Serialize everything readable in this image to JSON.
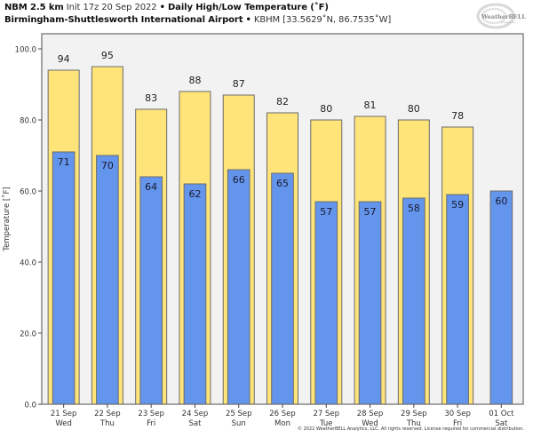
{
  "header": {
    "model": "NBM 2.5 km",
    "init": "Init 17z 20 Sep 2022",
    "separator": "•",
    "product": "Daily High/Low Temperature (˚F)",
    "location": "Birmingham-Shuttlesworth International Airport",
    "station": "KBHM [33.5629˚N, 86.7535˚W]"
  },
  "logo": {
    "name": "WeatherBELL",
    "sub": "Analytics LLC"
  },
  "copyright": "© 2022 WeatherBELL Analytics, LLC. All rights reserved. License required for commercial distribution.",
  "colors": {
    "high": "#ffe47a",
    "low": "#6495ed",
    "bar_edge": "#6b6b6b",
    "plot_bg": "#f2f2f2",
    "frame": "#6b6b6b"
  },
  "chart_data": {
    "type": "bar",
    "title": "Daily High/Low Temperature (˚F)",
    "xlabel": "",
    "ylabel": "Temperature [˚F]",
    "ylim": [
      0,
      104.25
    ],
    "yticks": [
      0,
      20,
      40,
      60,
      80,
      100
    ],
    "ytick_labels": [
      "0.0",
      "20.0",
      "40.0",
      "60.0",
      "80.0",
      "100.0"
    ],
    "grid": false,
    "categories": [
      {
        "date": "21 Sep",
        "day": "Wed"
      },
      {
        "date": "22 Sep",
        "day": "Thu"
      },
      {
        "date": "23 Sep",
        "day": "Fri"
      },
      {
        "date": "24 Sep",
        "day": "Sat"
      },
      {
        "date": "25 Sep",
        "day": "Sun"
      },
      {
        "date": "26 Sep",
        "day": "Mon"
      },
      {
        "date": "27 Sep",
        "day": "Tue"
      },
      {
        "date": "28 Sep",
        "day": "Wed"
      },
      {
        "date": "29 Sep",
        "day": "Thu"
      },
      {
        "date": "30 Sep",
        "day": "Fri"
      },
      {
        "date": "01 Oct",
        "day": "Sat"
      }
    ],
    "series": [
      {
        "name": "High",
        "values": [
          94,
          95,
          83,
          88,
          87,
          82,
          80,
          81,
          80,
          78,
          null
        ]
      },
      {
        "name": "Low",
        "values": [
          71,
          70,
          64,
          62,
          66,
          65,
          57,
          57,
          58,
          59,
          60
        ]
      }
    ]
  }
}
